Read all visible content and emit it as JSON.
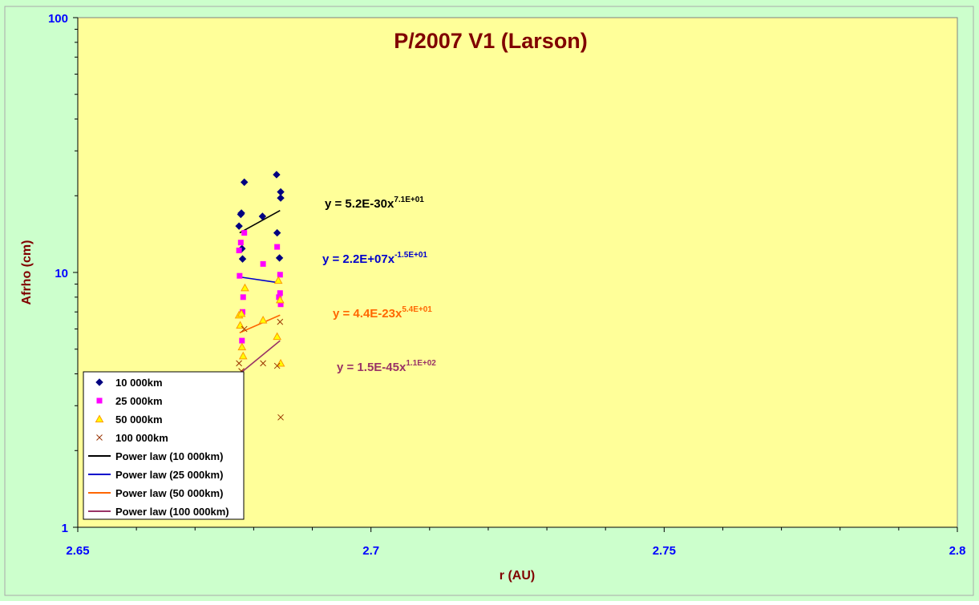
{
  "chart_data": {
    "type": "scatter",
    "title": "P/2007 V1 (Larson)",
    "xlabel": "r (AU)",
    "ylabel": "Afrho (cm)",
    "x_scale": "linear",
    "y_scale": "log",
    "xlim": [
      2.65,
      2.8
    ],
    "ylim": [
      1,
      100
    ],
    "x_ticks": [
      "2.65",
      "2.7",
      "2.75",
      "2.8"
    ],
    "y_ticks": [
      "1",
      "10",
      "100"
    ],
    "grid": false,
    "legend_position": "bottom-left",
    "colors": {
      "outer_background": "#ccffcc",
      "plot_background": "#ffff99",
      "title": "#800000",
      "axis_label": "#800000",
      "tick_label": "#0000ff"
    },
    "series": [
      {
        "name": "10 000km",
        "marker": "diamond",
        "color": "#000080",
        "x": [
          2.6775,
          2.6778,
          2.6779,
          2.678,
          2.6781,
          2.6784,
          2.6815,
          2.6839,
          2.684,
          2.6844,
          2.6846,
          2.6846
        ],
        "y": [
          15.2,
          16.9,
          17.1,
          12.4,
          11.3,
          22.6,
          16.6,
          24.2,
          14.3,
          11.4,
          20.7,
          19.6
        ]
      },
      {
        "name": "25 000km",
        "marker": "square",
        "color": "#ff00ff",
        "x": [
          2.6775,
          2.6776,
          2.6778,
          2.678,
          2.6781,
          2.6782,
          2.6784,
          2.6816,
          2.684,
          2.6843,
          2.6845,
          2.6845,
          2.6846
        ],
        "y": [
          12.2,
          9.7,
          13.1,
          5.4,
          7.0,
          8.0,
          14.3,
          10.8,
          12.6,
          8.0,
          9.8,
          8.3,
          7.5
        ]
      },
      {
        "name": "50 000km",
        "marker": "triangle",
        "color": "#ff9900",
        "x": [
          2.6775,
          2.6777,
          2.6779,
          2.678,
          2.6782,
          2.6785,
          2.6816,
          2.684,
          2.6842,
          2.6845,
          2.6846
        ],
        "y": [
          6.8,
          6.2,
          6.9,
          5.1,
          4.7,
          8.7,
          6.5,
          5.6,
          9.3,
          7.8,
          4.4
        ]
      },
      {
        "name": "100 000km",
        "marker": "x",
        "color": "#993300",
        "x": [
          2.6775,
          2.6779,
          2.6784,
          2.6816,
          2.684,
          2.6845,
          2.6846
        ],
        "y": [
          4.4,
          4.1,
          6.0,
          4.4,
          4.3,
          6.4,
          2.7
        ]
      }
    ],
    "trendlines": [
      {
        "name": "Power law (10 000km)",
        "type": "power",
        "color": "#000000",
        "x": [
          2.6776,
          2.6845
        ],
        "y": [
          14.3,
          17.5
        ],
        "equation": "y = 5.2E-30x",
        "exponent": "7.1E+01"
      },
      {
        "name": "Power law (25 000km)",
        "type": "power",
        "color": "#0000cc",
        "x": [
          2.6776,
          2.6845
        ],
        "y": [
          9.6,
          9.1
        ],
        "equation": "y = 2.2E+07x",
        "exponent": "-1.5E+01"
      },
      {
        "name": "Power law (50 000km)",
        "type": "power",
        "color": "#ff6600",
        "x": [
          2.6776,
          2.6845
        ],
        "y": [
          5.8,
          6.8
        ],
        "equation": "y = 4.4E-23x",
        "exponent": "5.4E+01"
      },
      {
        "name": "Power law (100 000km)",
        "type": "power",
        "color": "#993366",
        "x": [
          2.6776,
          2.6845
        ],
        "y": [
          4.0,
          5.4
        ],
        "equation": "y = 1.5E-45x",
        "exponent": "1.1E+02"
      }
    ]
  }
}
